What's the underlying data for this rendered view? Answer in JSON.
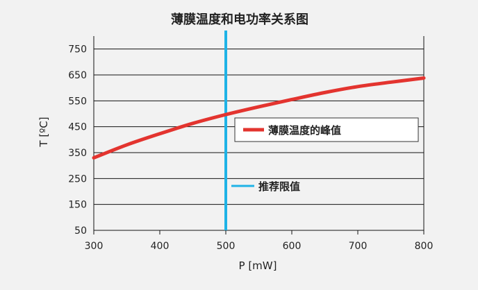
{
  "chart_data": {
    "type": "line",
    "title": "薄膜温度和电功率关系图",
    "xlabel": "P [mW]",
    "ylabel": "T [ºC]",
    "xlim": [
      300,
      800
    ],
    "ylim": [
      50,
      800
    ],
    "x_ticks": [
      300,
      400,
      500,
      600,
      700,
      800
    ],
    "y_ticks": [
      50,
      150,
      250,
      350,
      450,
      550,
      650,
      750
    ],
    "grid": "horizontal",
    "series": [
      {
        "name": "薄膜温度的峰值",
        "color": "#e3342f",
        "x": [
          300,
          350,
          400,
          450,
          500,
          550,
          600,
          650,
          700,
          750,
          800
        ],
        "y": [
          330,
          380,
          423,
          463,
          497,
          527,
          555,
          582,
          605,
          622,
          638
        ]
      }
    ],
    "reference_line": {
      "name": "推荐限值",
      "orientation": "vertical",
      "x": 500,
      "color": "#1fb3e6"
    },
    "legend_placement": "right-middle"
  }
}
